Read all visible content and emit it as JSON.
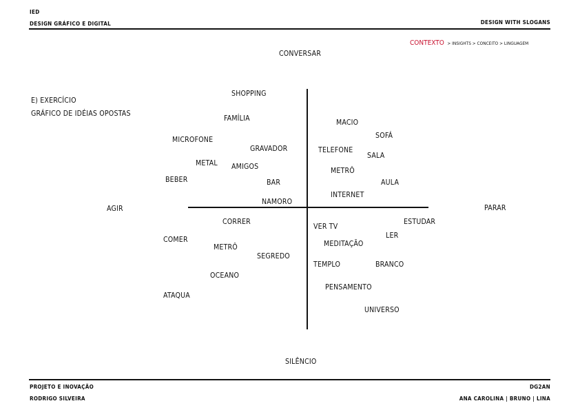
{
  "header": {
    "school": "IED",
    "course": "DESIGN GRÁFICO E DIGITAL",
    "project_title": "DESIGN WITH SLOGANS"
  },
  "breadcrumb": {
    "active": "CONTEXTO",
    "rest": "> INSIGHTS > CONCEITO > LINGUAGEM",
    "active_color": "#c8102e"
  },
  "exercise": {
    "line1": "E) EXERCÍCIO",
    "line2": "GRÁFICO DE IDÉIAS OPOSTAS"
  },
  "axes": {
    "top": "CONVERSAR",
    "bottom": "SILÊNCIO",
    "left": "AGIR",
    "right": "PARAR"
  },
  "words": {
    "shopping": "SHOPPING",
    "familia": "FAMÍLIA",
    "microfone": "MICROFONE",
    "gravador": "GRAVADOR",
    "metal": "METAL",
    "amigos": "AMIGOS",
    "beber": "BEBER",
    "bar": "BAR",
    "namoro": "NAMORO",
    "macio": "MACIO",
    "sofa": "SOFÁ",
    "telefone": "TELEFONE",
    "sala": "SALA",
    "metro_top": "METRÔ",
    "aula": "AULA",
    "internet": "INTERNET",
    "correr": "CORRER",
    "comer": "COMER",
    "metro_bottom": "METRÔ",
    "segredo": "SEGREDO",
    "oceano": "OCEANO",
    "ataqua": "ATAQUA",
    "vertv": "VER TV",
    "estudar": "ESTUDAR",
    "ler": "LER",
    "meditacao": "MEDITAÇÃO",
    "templo": "TEMPLO",
    "branco": "BRANCO",
    "pensamento": "PENSAMENTO",
    "universo": "UNIVERSO"
  },
  "footer": {
    "subject": "PROJETO E INOVAÇÃO",
    "teacher": "RODRIGO SILVEIRA",
    "code": "DG2AN",
    "authors": "ANA CAROLINA | BRUNO | LINA"
  }
}
